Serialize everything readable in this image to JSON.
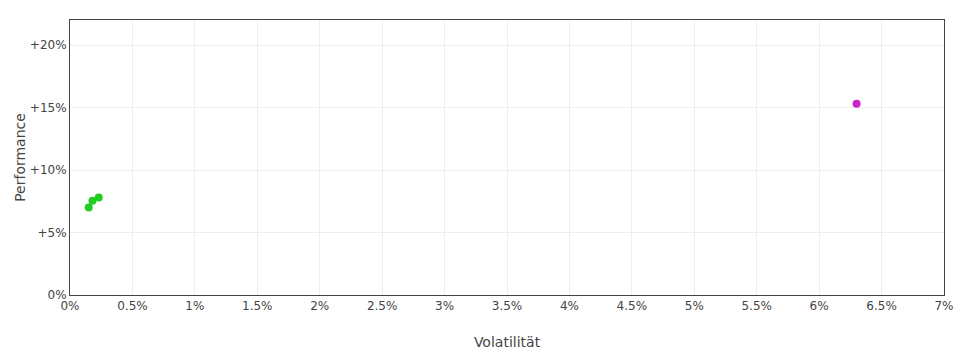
{
  "chart_data": {
    "type": "scatter",
    "xlabel": "Volatilität",
    "ylabel": "Performance",
    "xlim": [
      0,
      0.07
    ],
    "ylim": [
      0,
      0.22
    ],
    "xticks": [
      {
        "value": 0.0,
        "label": "0%"
      },
      {
        "value": 0.005,
        "label": "0.5%"
      },
      {
        "value": 0.01,
        "label": "1%"
      },
      {
        "value": 0.015,
        "label": "1.5%"
      },
      {
        "value": 0.02,
        "label": "2%"
      },
      {
        "value": 0.025,
        "label": "2.5%"
      },
      {
        "value": 0.03,
        "label": "3%"
      },
      {
        "value": 0.035,
        "label": "3.5%"
      },
      {
        "value": 0.04,
        "label": "4%"
      },
      {
        "value": 0.045,
        "label": "4.5%"
      },
      {
        "value": 0.05,
        "label": "5%"
      },
      {
        "value": 0.055,
        "label": "5.5%"
      },
      {
        "value": 0.06,
        "label": "6%"
      },
      {
        "value": 0.065,
        "label": "6.5%"
      },
      {
        "value": 0.07,
        "label": "7%"
      }
    ],
    "yticks": [
      {
        "value": 0.0,
        "label": "0%"
      },
      {
        "value": 0.05,
        "label": "+5%"
      },
      {
        "value": 0.1,
        "label": "+10%"
      },
      {
        "value": 0.15,
        "label": "+15%"
      },
      {
        "value": 0.2,
        "label": "+20%"
      }
    ],
    "grid": true,
    "series": [
      {
        "color": "#22cc22",
        "x": [
          0.0018,
          0.0023,
          0.0015
        ],
        "values": [
          0.0755,
          0.078,
          0.07
        ]
      },
      {
        "color": "#cc22cc",
        "x": [
          0.063
        ],
        "values": [
          0.153
        ]
      }
    ]
  }
}
